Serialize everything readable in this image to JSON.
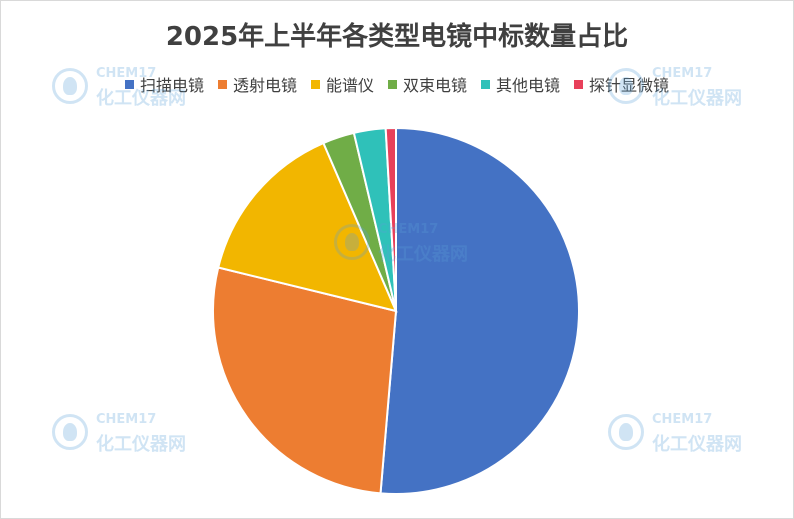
{
  "chart_data": {
    "type": "pie",
    "title": "2025年上半年各类型电镜中标数量占比",
    "legend_position": "top",
    "slices": [
      {
        "label": "扫描电镜",
        "value": 51.4,
        "color": "#4472C4"
      },
      {
        "label": "透射电镜",
        "value": 27.5,
        "color": "#ED7D31"
      },
      {
        "label": "能谱仪",
        "value": 14.7,
        "color": "#F2B600"
      },
      {
        "label": "双束电镜",
        "value": 2.8,
        "color": "#70AD47"
      },
      {
        "label": "其他电镜",
        "value": 2.8,
        "color": "#2FC1B9"
      },
      {
        "label": "探针显微镜",
        "value": 0.9,
        "color": "#E8405A"
      }
    ]
  },
  "watermark": {
    "top_text": "CHEM17",
    "bottom_text": "化工仪器网"
  }
}
